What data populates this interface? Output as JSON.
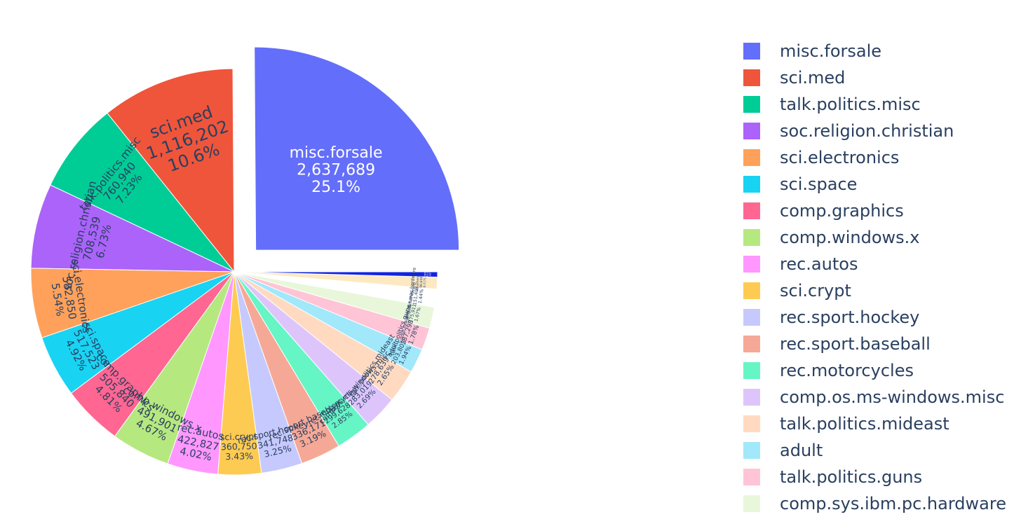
{
  "chart_data": {
    "type": "pie",
    "title": "",
    "slices": [
      {
        "label": "misc.forsale",
        "value": 2637689,
        "value_text": "2,637,689",
        "percent_text": "25.1%",
        "pull": 0.15,
        "color": "#636efa",
        "text_color": "#ffffff",
        "show_label": true
      },
      {
        "label": "sci.med",
        "value": 1116202,
        "value_text": "1,116,202",
        "percent_text": "10.6%",
        "color": "#EF553B",
        "show_label": true
      },
      {
        "label": "talk.politics.misc",
        "value": 760940,
        "value_text": "760,940",
        "percent_text": "7.23%",
        "color": "#00cc96",
        "show_label": true
      },
      {
        "label": "soc.religion.christian",
        "value": 708539,
        "value_text": "708,539",
        "percent_text": "6.73%",
        "color": "#ab63fa",
        "show_label": true
      },
      {
        "label": "sci.electronics",
        "value": 582850,
        "value_text": "582,850",
        "percent_text": "5.54%",
        "color": "#FFA15A",
        "show_label": true
      },
      {
        "label": "sci.space",
        "value": 517523,
        "value_text": "517,523",
        "percent_text": "4.92%",
        "color": "#19d3f3",
        "show_label": true
      },
      {
        "label": "comp.graphics",
        "value": 505840,
        "value_text": "505,840",
        "percent_text": "4.81%",
        "color": "#FF6692",
        "show_label": true
      },
      {
        "label": "comp.windows.x",
        "value": 491901,
        "value_text": "491,901",
        "percent_text": "4.67%",
        "color": "#B6E880",
        "show_label": true
      },
      {
        "label": "rec.autos",
        "value": 422827,
        "value_text": "422,827",
        "percent_text": "4.02%",
        "color": "#FF97FF",
        "show_label": true
      },
      {
        "label": "sci.crypt",
        "value": 360750,
        "value_text": "360,750",
        "percent_text": "3.43%",
        "color": "#FECB52",
        "show_label": true
      },
      {
        "label": "rec.sport.hockey",
        "value": 341748,
        "value_text": "341,748",
        "percent_text": "3.25%",
        "color": "#c6c9fd",
        "show_label": true
      },
      {
        "label": "rec.sport.baseball",
        "value": 336171,
        "value_text": "336,171",
        "percent_text": "3.19%",
        "color": "#f6a897",
        "show_label": true
      },
      {
        "label": "rec.motorcycles",
        "value": 299628,
        "value_text": "299,628",
        "percent_text": "2.85%",
        "color": "#66f5c5",
        "show_label": true
      },
      {
        "label": "comp.os.ms-windows.misc",
        "value": 283019,
        "value_text": "283,019",
        "percent_text": "2.69%",
        "color": "#ddc5fc",
        "show_label": true
      },
      {
        "label": "talk.politics.mideast",
        "value": 278639,
        "value_text": "278,639",
        "percent_text": "2.65%",
        "color": "#ffdac1",
        "show_label": true
      },
      {
        "label": "adult",
        "value": 203803,
        "value_text": "203,803",
        "percent_text": "1.94%",
        "color": "#a1e8fb",
        "show_label": true
      },
      {
        "label": "talk.politics.guns",
        "value": 187298,
        "value_text": "187,298",
        "percent_text": "1.78%",
        "color": "#ffc4d5",
        "show_label": true
      },
      {
        "label": "comp.sys.ibm.pc.hardware",
        "value": 175911,
        "value_text": "175,911",
        "percent_text": "1.67%",
        "color": "#e8f7d9",
        "show_label": true
      },
      {
        "label": "comp.sys.mac.hardware",
        "value": 151408,
        "value_text": "151,408",
        "percent_text": "1.44%",
        "color": "#ffffff",
        "show_label": true
      },
      {
        "label": "alt.atheism",
        "value": 98659,
        "value_text": "98,659",
        "percent_text": "0.93%",
        "color": "#fde9c1",
        "show_label": true
      },
      {
        "label": "talk.religion.misc",
        "value": 44135,
        "value_text": "44,135",
        "percent_text": "0.42%",
        "color": "#1224e0",
        "text_color": "#ffffff",
        "show_label": true
      }
    ],
    "legend_entries": [
      "misc.forsale",
      "sci.med",
      "talk.politics.misc",
      "soc.religion.christian",
      "sci.electronics",
      "sci.space",
      "comp.graphics",
      "comp.windows.x",
      "rec.autos",
      "sci.crypt",
      "rec.sport.hockey",
      "rec.sport.baseball",
      "rec.motorcycles",
      "comp.os.ms-windows.misc",
      "talk.politics.mideast",
      "adult",
      "talk.politics.guns",
      "comp.sys.ibm.pc.hardware"
    ],
    "legend_position": "right",
    "direction": "counterclockwise",
    "start_angle": "3 o'clock"
  }
}
